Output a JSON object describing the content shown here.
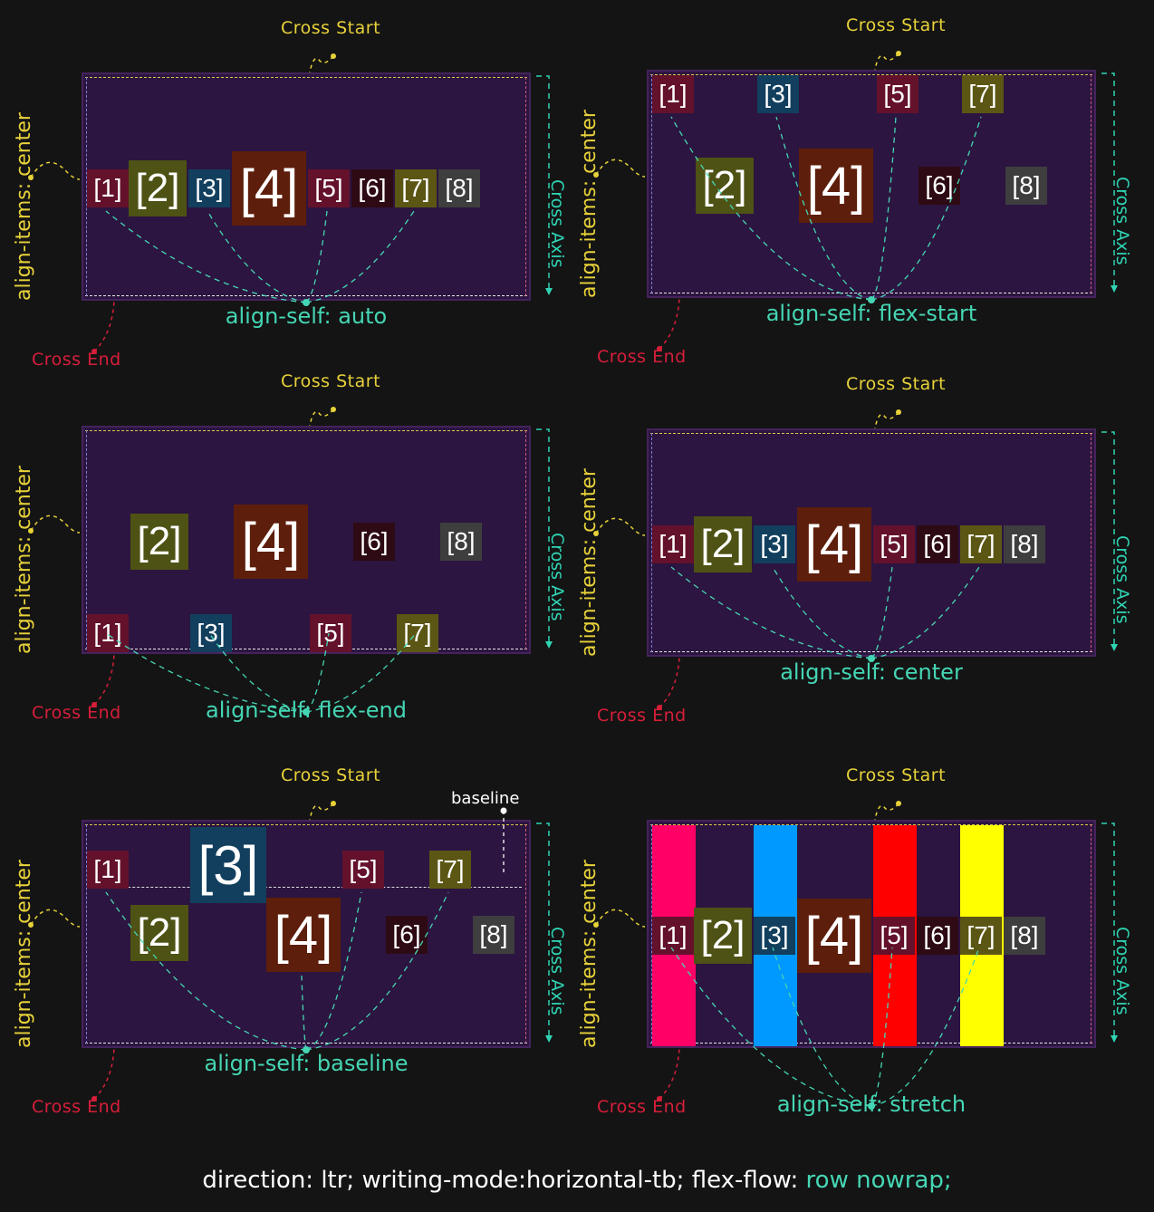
{
  "labels": {
    "cross_start": "Cross Start",
    "cross_end": "Cross End",
    "cross_axis": "Cross Axis",
    "align_items": "align-items: center",
    "baseline": "baseline"
  },
  "panels": [
    {
      "align_self": "align-self: auto"
    },
    {
      "align_self": "align-self: flex-start"
    },
    {
      "align_self": "align-self: flex-end"
    },
    {
      "align_self": "align-self: center"
    },
    {
      "align_self": "align-self: baseline"
    },
    {
      "align_self": "align-self: stretch"
    }
  ],
  "items": [
    "[1]",
    "[2]",
    "[3]",
    "[4]",
    "[5]",
    "[6]",
    "[7]",
    "[8]"
  ],
  "item_colors": [
    "#64112c",
    "#4e5214",
    "#123f5e",
    "#5e1e0c",
    "#64112c",
    "#2e0a14",
    "#5c5614",
    "#3e3e3e"
  ],
  "stretch_colors": {
    "1": "#ff0066",
    "3": "#0099ff",
    "5": "#ff0000",
    "7": "#ffff00"
  },
  "footer": {
    "part1": "direction: ltr; writing-mode:horizontal-tb; flex-flow: ",
    "part2": "row nowrap;"
  }
}
